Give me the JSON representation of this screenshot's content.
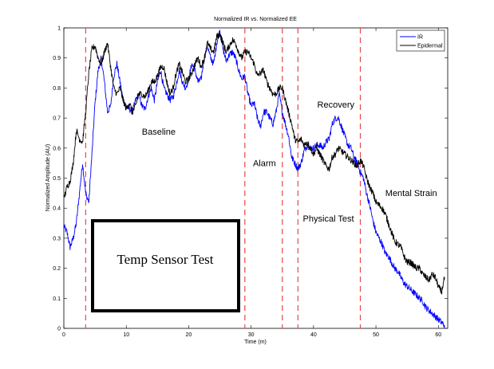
{
  "chart_data": {
    "type": "line",
    "title": "Normalized IR vs. Normalized EE",
    "xlabel": "Time (m)",
    "ylabel": "Normalized Amplitude (AU)",
    "xlim": [
      0,
      61.5
    ],
    "ylim": [
      0,
      1
    ],
    "xticks": [
      0,
      10,
      20,
      30,
      40,
      50,
      60
    ],
    "yticks": [
      0,
      0.1,
      0.2,
      0.3,
      0.4,
      0.5,
      0.6,
      0.7,
      0.8,
      0.9,
      1
    ],
    "xtick_labels": [
      "0",
      "10",
      "20",
      "30",
      "40",
      "50",
      "60"
    ],
    "ytick_labels": [
      "0",
      "0.1",
      "0.2",
      "0.3",
      "0.4",
      "0.5",
      "0.6",
      "0.7",
      "0.8",
      "0.9",
      "1"
    ],
    "grid": false,
    "legend_position": "top-right",
    "series": [
      {
        "name": "IR",
        "color": "#0000ff",
        "x": [
          0,
          0.5,
          1,
          1.5,
          2,
          2.5,
          3,
          3.5,
          4,
          4.5,
          5,
          5.5,
          6,
          6.5,
          7,
          7.5,
          8,
          8.5,
          9,
          9.5,
          10,
          10.5,
          11,
          11.5,
          12,
          12.5,
          13,
          13.5,
          14,
          14.5,
          15,
          15.5,
          16,
          16.5,
          17,
          17.5,
          18,
          18.5,
          19,
          19.5,
          20,
          20.5,
          21,
          21.5,
          22,
          22.5,
          23,
          23.5,
          24,
          24.5,
          25,
          25.5,
          26,
          26.5,
          27,
          27.5,
          28,
          28.5,
          29,
          29.5,
          30,
          30.5,
          31,
          31.5,
          32,
          32.5,
          33,
          33.5,
          34,
          34.5,
          35,
          35.5,
          36,
          36.5,
          37,
          37.5,
          38,
          38.5,
          39,
          39.5,
          40,
          40.5,
          41,
          41.5,
          42,
          42.5,
          43,
          43.5,
          44,
          44.5,
          45,
          45.5,
          46,
          46.5,
          47,
          47.5,
          48,
          48.5,
          49,
          49.5,
          50,
          50.5,
          51,
          51.5,
          52,
          52.5,
          53,
          53.5,
          54,
          54.5,
          55,
          55.5,
          56,
          56.5,
          57,
          57.5,
          58,
          58.5,
          59,
          59.5,
          60,
          60.5,
          61
        ],
        "values": [
          0.34,
          0.32,
          0.27,
          0.3,
          0.35,
          0.45,
          0.55,
          0.45,
          0.42,
          0.58,
          0.75,
          0.86,
          0.9,
          0.82,
          0.72,
          0.74,
          0.84,
          0.88,
          0.82,
          0.76,
          0.74,
          0.73,
          0.72,
          0.76,
          0.78,
          0.74,
          0.73,
          0.77,
          0.8,
          0.76,
          0.82,
          0.86,
          0.8,
          0.78,
          0.76,
          0.77,
          0.81,
          0.86,
          0.82,
          0.8,
          0.83,
          0.88,
          0.86,
          0.82,
          0.83,
          0.9,
          0.94,
          0.9,
          0.88,
          0.95,
          0.99,
          0.93,
          0.89,
          0.91,
          0.92,
          0.9,
          0.86,
          0.83,
          0.84,
          0.78,
          0.74,
          0.75,
          0.7,
          0.67,
          0.72,
          0.72,
          0.7,
          0.68,
          0.72,
          0.78,
          0.72,
          0.68,
          0.64,
          0.57,
          0.55,
          0.53,
          0.55,
          0.59,
          0.61,
          0.6,
          0.6,
          0.61,
          0.61,
          0.6,
          0.62,
          0.63,
          0.68,
          0.7,
          0.7,
          0.67,
          0.64,
          0.61,
          0.6,
          0.57,
          0.55,
          0.52,
          0.5,
          0.45,
          0.41,
          0.36,
          0.32,
          0.3,
          0.28,
          0.25,
          0.24,
          0.22,
          0.2,
          0.19,
          0.17,
          0.15,
          0.14,
          0.13,
          0.12,
          0.11,
          0.1,
          0.09,
          0.07,
          0.06,
          0.05,
          0.04,
          0.03,
          0.02,
          0.01
        ]
      },
      {
        "name": "Epidermal",
        "color": "#000000",
        "x": [
          0,
          0.5,
          1,
          1.5,
          2,
          2.5,
          3,
          3.5,
          4,
          4.5,
          5,
          5.5,
          6,
          6.5,
          7,
          7.5,
          8,
          8.5,
          9,
          9.5,
          10,
          10.5,
          11,
          11.5,
          12,
          12.5,
          13,
          13.5,
          14,
          14.5,
          15,
          15.5,
          16,
          16.5,
          17,
          17.5,
          18,
          18.5,
          19,
          19.5,
          20,
          20.5,
          21,
          21.5,
          22,
          22.5,
          23,
          23.5,
          24,
          24.5,
          25,
          25.5,
          26,
          26.5,
          27,
          27.5,
          28,
          28.5,
          29,
          29.5,
          30,
          30.5,
          31,
          31.5,
          32,
          32.5,
          33,
          33.5,
          34,
          34.5,
          35,
          35.5,
          36,
          36.5,
          37,
          37.5,
          38,
          38.5,
          39,
          39.5,
          40,
          40.5,
          41,
          41.5,
          42,
          42.5,
          43,
          43.5,
          44,
          44.5,
          45,
          45.5,
          46,
          46.5,
          47,
          47.5,
          48,
          48.5,
          49,
          49.5,
          50,
          50.5,
          51,
          51.5,
          52,
          52.5,
          53,
          53.5,
          54,
          54.5,
          55,
          55.5,
          56,
          56.5,
          57,
          57.5,
          58,
          58.5,
          59,
          59.5,
          60,
          60.5,
          61
        ],
        "values": [
          0.43,
          0.47,
          0.49,
          0.55,
          0.66,
          0.63,
          0.62,
          0.72,
          0.85,
          0.93,
          0.94,
          0.9,
          0.88,
          0.92,
          0.95,
          0.87,
          0.8,
          0.78,
          0.8,
          0.76,
          0.73,
          0.75,
          0.72,
          0.74,
          0.78,
          0.78,
          0.77,
          0.79,
          0.82,
          0.82,
          0.84,
          0.87,
          0.87,
          0.82,
          0.78,
          0.8,
          0.85,
          0.88,
          0.85,
          0.82,
          0.83,
          0.85,
          0.88,
          0.9,
          0.87,
          0.9,
          0.95,
          0.93,
          0.92,
          0.97,
          0.98,
          0.95,
          0.92,
          0.94,
          0.96,
          0.95,
          0.92,
          0.9,
          0.92,
          0.92,
          0.9,
          0.88,
          0.84,
          0.85,
          0.86,
          0.82,
          0.8,
          0.78,
          0.78,
          0.8,
          0.8,
          0.76,
          0.72,
          0.68,
          0.63,
          0.62,
          0.63,
          0.61,
          0.62,
          0.6,
          0.58,
          0.6,
          0.58,
          0.56,
          0.54,
          0.53,
          0.57,
          0.58,
          0.6,
          0.59,
          0.58,
          0.57,
          0.56,
          0.55,
          0.54,
          0.56,
          0.54,
          0.5,
          0.47,
          0.45,
          0.42,
          0.41,
          0.4,
          0.38,
          0.35,
          0.32,
          0.29,
          0.28,
          0.27,
          0.24,
          0.22,
          0.22,
          0.21,
          0.2,
          0.2,
          0.18,
          0.17,
          0.16,
          0.18,
          0.17,
          0.14,
          0.12,
          0.17
        ]
      }
    ],
    "vlines": {
      "color": "#e8474b",
      "x": [
        3.5,
        29,
        35,
        37.5,
        47.5
      ]
    },
    "annotations": [
      {
        "text": "Baseline",
        "x": 12.5,
        "y": 0.645
      },
      {
        "text": "Alarm",
        "x": 30.3,
        "y": 0.54
      },
      {
        "text": "Recovery",
        "x": 40.6,
        "y": 0.735
      },
      {
        "text": "Mental Strain",
        "x": 51.5,
        "y": 0.44
      },
      {
        "text": "Physical Test",
        "x": 38.3,
        "y": 0.355
      }
    ],
    "inset_box": {
      "text": "Temp Sensor Test"
    }
  }
}
